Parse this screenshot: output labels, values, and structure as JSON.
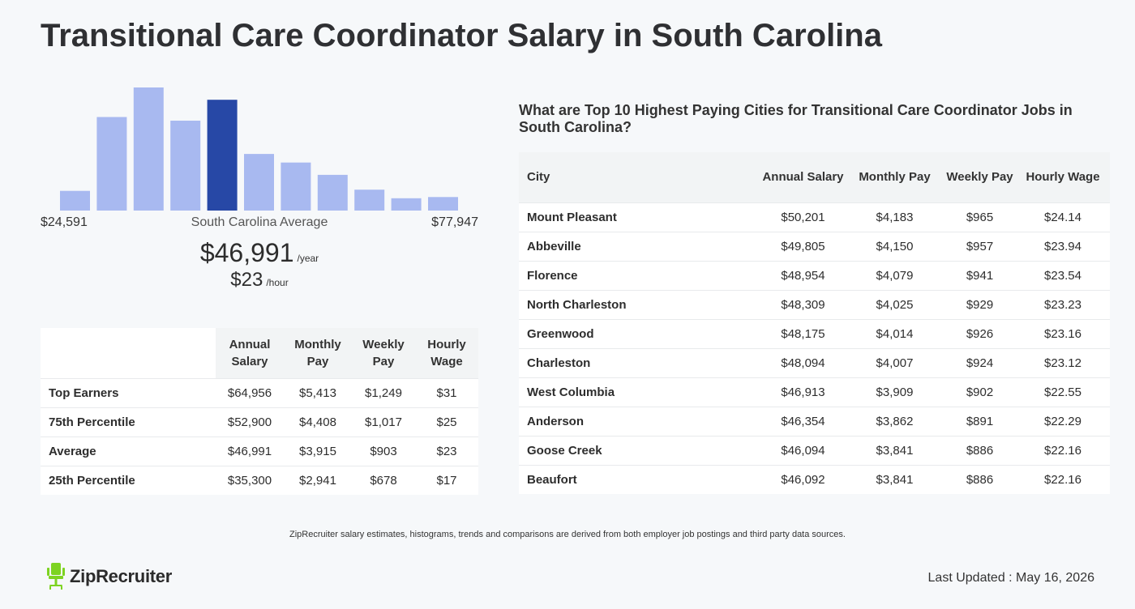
{
  "page_title": "Transitional Care Coordinator Salary in South Carolina",
  "histogram": {
    "range_min": "$24,591",
    "range_max": "$77,947",
    "average_label": "South Carolina Average",
    "annual_value": "$46,991",
    "annual_unit": "/year",
    "hourly_value": "$23",
    "hourly_unit": "/hour",
    "colors": {
      "bar": "#a8b9f0",
      "highlight": "#2748a6"
    }
  },
  "chart_data": {
    "type": "bar",
    "values": [
      16,
      76,
      100,
      73,
      90,
      46,
      39,
      29,
      17,
      10,
      11
    ],
    "highlight_index": 4,
    "ylim": [
      0,
      100
    ],
    "x_range": [
      "$24,591",
      "$77,947"
    ],
    "grid": false
  },
  "percentiles": {
    "headers": [
      "",
      "Annual Salary",
      "Monthly Pay",
      "Weekly Pay",
      "Hourly Wage"
    ],
    "rows": [
      [
        "Top Earners",
        "$64,956",
        "$5,413",
        "$1,249",
        "$31"
      ],
      [
        "75th Percentile",
        "$52,900",
        "$4,408",
        "$1,017",
        "$25"
      ],
      [
        "Average",
        "$46,991",
        "$3,915",
        "$903",
        "$23"
      ],
      [
        "25th Percentile",
        "$35,300",
        "$2,941",
        "$678",
        "$17"
      ]
    ]
  },
  "cities": {
    "title": "What are Top 10 Highest Paying Cities for Transitional Care Coordinator Jobs in South Carolina?",
    "headers": [
      "City",
      "Annual Salary",
      "Monthly Pay",
      "Weekly Pay",
      "Hourly Wage"
    ],
    "rows": [
      [
        "Mount Pleasant",
        "$50,201",
        "$4,183",
        "$965",
        "$24.14"
      ],
      [
        "Abbeville",
        "$49,805",
        "$4,150",
        "$957",
        "$23.94"
      ],
      [
        "Florence",
        "$48,954",
        "$4,079",
        "$941",
        "$23.54"
      ],
      [
        "North Charleston",
        "$48,309",
        "$4,025",
        "$929",
        "$23.23"
      ],
      [
        "Greenwood",
        "$48,175",
        "$4,014",
        "$926",
        "$23.16"
      ],
      [
        "Charleston",
        "$48,094",
        "$4,007",
        "$924",
        "$23.12"
      ],
      [
        "West Columbia",
        "$46,913",
        "$3,909",
        "$902",
        "$22.55"
      ],
      [
        "Anderson",
        "$46,354",
        "$3,862",
        "$891",
        "$22.29"
      ],
      [
        "Goose Creek",
        "$46,094",
        "$3,841",
        "$886",
        "$22.16"
      ],
      [
        "Beaufort",
        "$46,092",
        "$3,841",
        "$886",
        "$22.16"
      ]
    ]
  },
  "footer": {
    "note": "ZipRecruiter salary estimates, histograms, trends and comparisons are derived from both employer job postings and third party data sources.",
    "logo_text": "ZipRecruiter",
    "logo_icon": "chair-icon",
    "logo_color": "#7dd321",
    "last_updated": "Last Updated : May 16, 2026"
  }
}
